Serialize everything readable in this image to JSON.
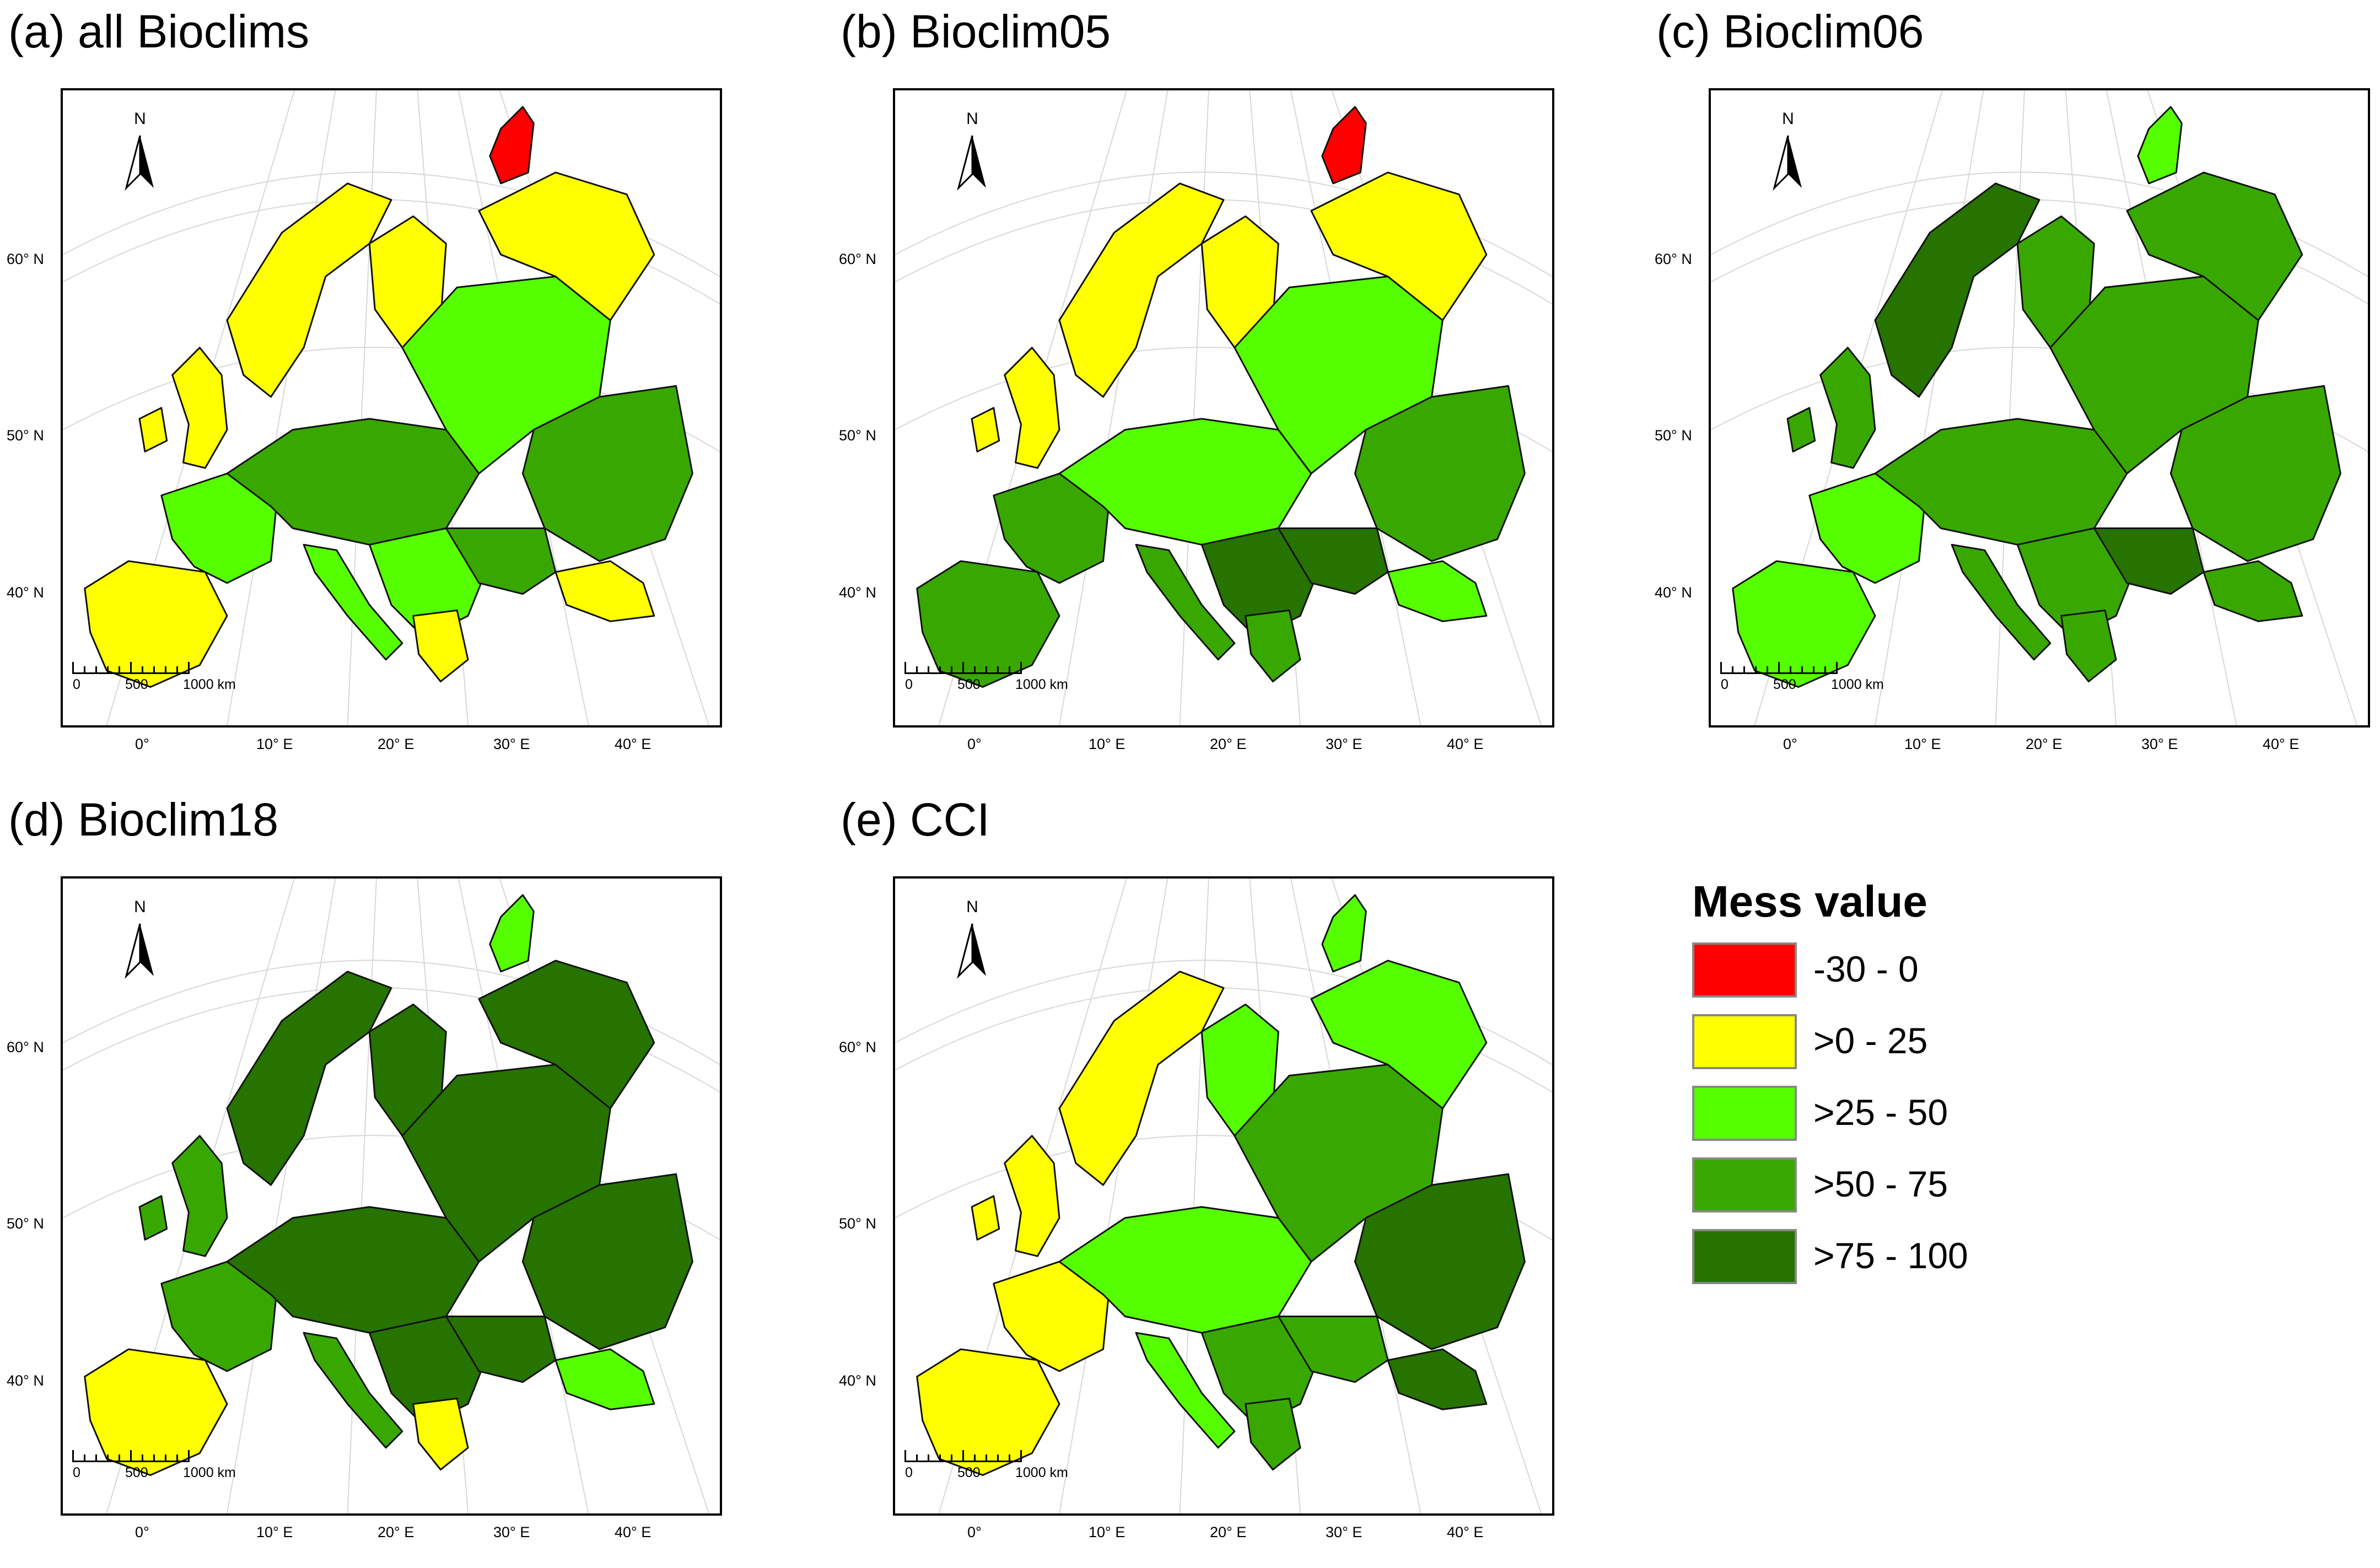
{
  "panels": [
    {
      "id": "a",
      "title": "(a) all Bioclims",
      "regions": {
        "iberia": "yellow",
        "france": "light",
        "britain": "yellow",
        "scandinavia": "yellow",
        "finland": "yellow",
        "central": "mid",
        "balkans": "light",
        "italy": "light",
        "greece": "yellow",
        "russia_west": "light",
        "russia_east": "mid",
        "north_russia": "yellow",
        "kola_tip": "red",
        "caucasus": "yellow",
        "ukraine": "mid"
      }
    },
    {
      "id": "b",
      "title": "(b) Bioclim05",
      "regions": {
        "iberia": "mid",
        "france": "mid",
        "britain": "yellow",
        "scandinavia": "yellow",
        "finland": "yellow",
        "central": "light",
        "balkans": "dark",
        "italy": "mid",
        "greece": "mid",
        "russia_west": "light",
        "russia_east": "mid",
        "north_russia": "yellow",
        "kola_tip": "red",
        "caucasus": "light",
        "ukraine": "dark"
      }
    },
    {
      "id": "c",
      "title": "(c) Bioclim06",
      "regions": {
        "iberia": "light",
        "france": "light",
        "britain": "mid",
        "scandinavia": "dark",
        "finland": "mid",
        "central": "mid",
        "balkans": "mid",
        "italy": "mid",
        "greece": "mid",
        "russia_west": "mid",
        "russia_east": "mid",
        "north_russia": "mid",
        "kola_tip": "light",
        "caucasus": "mid",
        "ukraine": "dark"
      }
    },
    {
      "id": "d",
      "title": "(d) Bioclim18",
      "regions": {
        "iberia": "yellow",
        "france": "mid",
        "britain": "mid",
        "scandinavia": "dark",
        "finland": "dark",
        "central": "dark",
        "balkans": "dark",
        "italy": "mid",
        "greece": "yellow",
        "russia_west": "dark",
        "russia_east": "dark",
        "north_russia": "dark",
        "kola_tip": "light",
        "caucasus": "light",
        "ukraine": "dark"
      }
    },
    {
      "id": "e",
      "title": "(e) CCI",
      "regions": {
        "iberia": "yellow",
        "france": "yellow",
        "britain": "yellow",
        "scandinavia": "yellow",
        "finland": "light",
        "central": "light",
        "balkans": "mid",
        "italy": "light",
        "greece": "mid",
        "russia_west": "mid",
        "russia_east": "dark",
        "north_russia": "light",
        "kola_tip": "light",
        "caucasus": "dark",
        "ukraine": "mid"
      }
    }
  ],
  "map_labels": {
    "north": "N",
    "latitudes": [
      "60° N",
      "50° N",
      "40° N"
    ],
    "longitudes": [
      "0°",
      "10° E",
      "20° E",
      "30° E",
      "40° E"
    ],
    "scale": [
      "0",
      "500",
      "1000 km"
    ]
  },
  "legend": {
    "title": "Mess value",
    "items": [
      {
        "key": "red",
        "label": "-30 - 0",
        "color": "#ff0000"
      },
      {
        "key": "yellow",
        "label": ">0 - 25",
        "color": "#ffff00"
      },
      {
        "key": "light",
        "label": ">25 - 50",
        "color": "#55ff00"
      },
      {
        "key": "mid",
        "label": ">50 - 75",
        "color": "#38a800"
      },
      {
        "key": "dark",
        "label": ">75 - 100",
        "color": "#267300"
      }
    ]
  }
}
